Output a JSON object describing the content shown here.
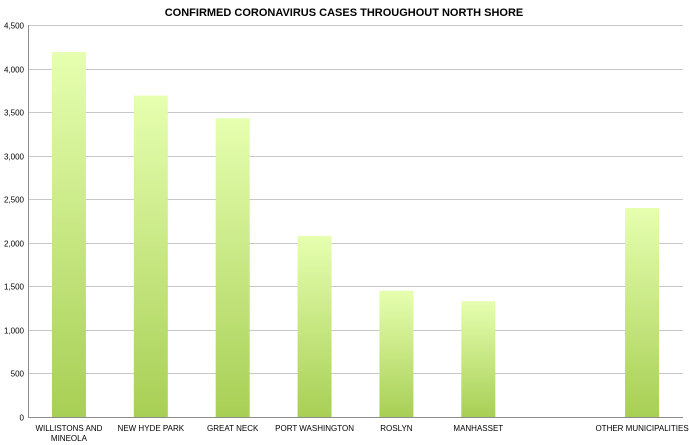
{
  "chart_data": {
    "type": "bar",
    "title": "CONFIRMED CORONAVIRUS CASES THROUGHOUT NORTH SHORE",
    "xlabel": "",
    "ylabel": "",
    "ylim": [
      0,
      4500
    ],
    "yticks": [
      0,
      500,
      1000,
      1500,
      2000,
      2500,
      3000,
      3500,
      4000,
      4500
    ],
    "ytick_labels": [
      "0",
      "500",
      "1,000",
      "1,500",
      "2,000",
      "2,500",
      "3,000",
      "3,500",
      "4,000",
      "4,500"
    ],
    "grid": true,
    "legend": "none",
    "categories": [
      [
        "WILLISTONS AND",
        "MINEOLA"
      ],
      [
        "NEW HYDE PARK"
      ],
      [
        "GREAT NECK"
      ],
      [
        "PORT WASHINGTON"
      ],
      [
        "ROSLYN"
      ],
      [
        "MANHASSET"
      ],
      [
        ""
      ],
      [
        "OTHER MUNICIPALITIES"
      ]
    ],
    "values": [
      4190,
      3690,
      3430,
      2080,
      1450,
      1330,
      null,
      2400
    ],
    "colors": {
      "bar_top": "#e6ffb0",
      "bar_bottom": "#a8cf55",
      "grid": "#c8c8c8",
      "axis": "#8c8c8c"
    }
  }
}
